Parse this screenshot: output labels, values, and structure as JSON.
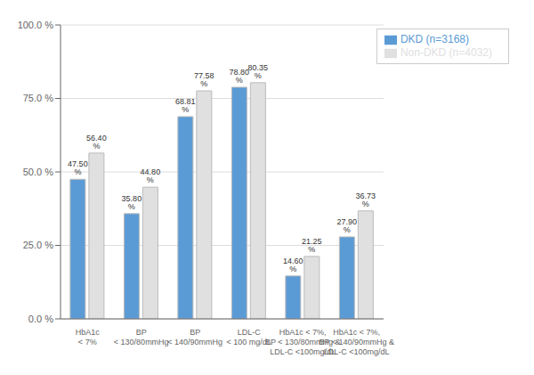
{
  "chart_data": {
    "type": "bar",
    "categories": [
      "HbA1c\n< 7%",
      "BP\n< 130/80mmHg",
      "BP\n< 140/90mmHg",
      "LDL-C\n< 100 mg/dL",
      "HbA1c < 7%,\nBP < 130/80mmHg &\nLDL-C <100mg/dL",
      "HbA1c < 7%,\nBP < 140/90mmHg &\nLDL-C <100mg/dL"
    ],
    "series": [
      {
        "name": "DKD (n=3168)",
        "color": "#5B9BD5",
        "values": [
          47.5,
          35.8,
          68.81,
          78.8,
          14.6,
          27.9
        ],
        "value_labels": [
          "47.50 %",
          "35.80 %",
          "68.81 %",
          "78.80 %",
          "14.60 %",
          "27.90 %"
        ]
      },
      {
        "name": "Non-DKD (n=4032)",
        "color": "#E0E0E0",
        "values": [
          56.4,
          44.8,
          77.58,
          80.35,
          21.25,
          36.73
        ],
        "value_labels": [
          "56.40 %",
          "44.80 %",
          "77.58 %",
          "80.35 %",
          "21.25 %",
          "36.73 %"
        ]
      }
    ],
    "ylim": [
      0,
      100
    ],
    "yticks": [
      {
        "value": 0,
        "label": "0.0 %"
      },
      {
        "value": 25,
        "label": "25.0 %"
      },
      {
        "value": 50,
        "label": "50.0 %"
      },
      {
        "value": 75,
        "label": "75.0 %"
      },
      {
        "value": 100,
        "label": "100.0 %"
      }
    ],
    "grid": true,
    "data_labels": true,
    "legend": "upper right"
  }
}
